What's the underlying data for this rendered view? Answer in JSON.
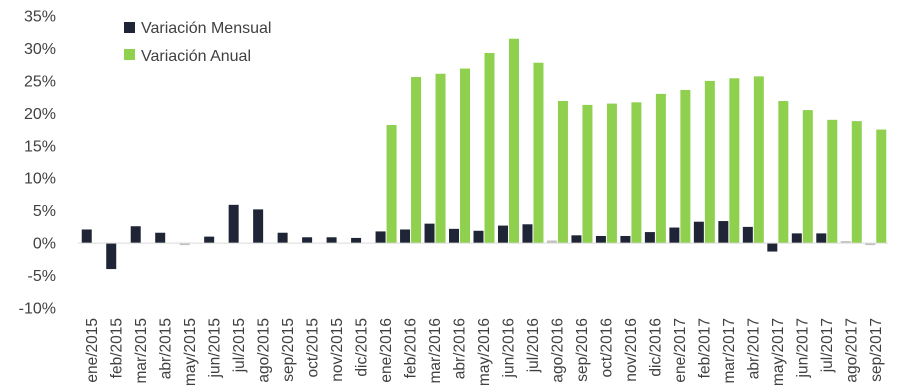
{
  "chart_data": {
    "type": "bar",
    "title": "",
    "xlabel": "",
    "ylabel": "",
    "ylim": [
      -10,
      35
    ],
    "ytick_step": 5,
    "ytick_format": "percent",
    "grid": false,
    "legend_position": "top-left",
    "categories": [
      "ene/2015",
      "feb/2015",
      "mar/2015",
      "abr/2015",
      "may/2015",
      "jun/2015",
      "jul/2015",
      "ago/2015",
      "sep/2015",
      "oct/2015",
      "nov/2015",
      "dic/2015",
      "ene/2016",
      "feb/2016",
      "mar/2016",
      "abr/2016",
      "may/2016",
      "jun/2016",
      "jul/2016",
      "ago/2016",
      "sep/2016",
      "oct/2016",
      "nov/2016",
      "dic/2016",
      "ene/2017",
      "feb/2017",
      "mar/2017",
      "abr/2017",
      "may/2017",
      "jun/2017",
      "jul/2017",
      "ago/2017",
      "sep/2017"
    ],
    "series": [
      {
        "name": "Variación Mensual",
        "color": "#1f2536",
        "values": [
          2.1,
          -4.0,
          2.6,
          1.6,
          -0.3,
          1.0,
          5.9,
          5.2,
          1.6,
          0.9,
          0.9,
          0.8,
          1.8,
          2.1,
          3.0,
          2.2,
          1.9,
          2.7,
          2.9,
          0.4,
          1.2,
          1.1,
          1.1,
          1.7,
          2.4,
          3.3,
          3.4,
          2.5,
          -1.3,
          1.5,
          1.5,
          0.3,
          -0.3
        ]
      },
      {
        "name": "Variación Anual",
        "color": "#8fd14f",
        "values": [
          null,
          null,
          null,
          null,
          null,
          null,
          null,
          null,
          null,
          null,
          null,
          null,
          18.2,
          25.6,
          26.1,
          26.9,
          29.3,
          31.5,
          27.8,
          21.9,
          21.3,
          21.5,
          21.7,
          23.0,
          23.6,
          25.0,
          25.4,
          25.7,
          21.9,
          20.5,
          19.0,
          18.8,
          17.5
        ]
      }
    ]
  }
}
